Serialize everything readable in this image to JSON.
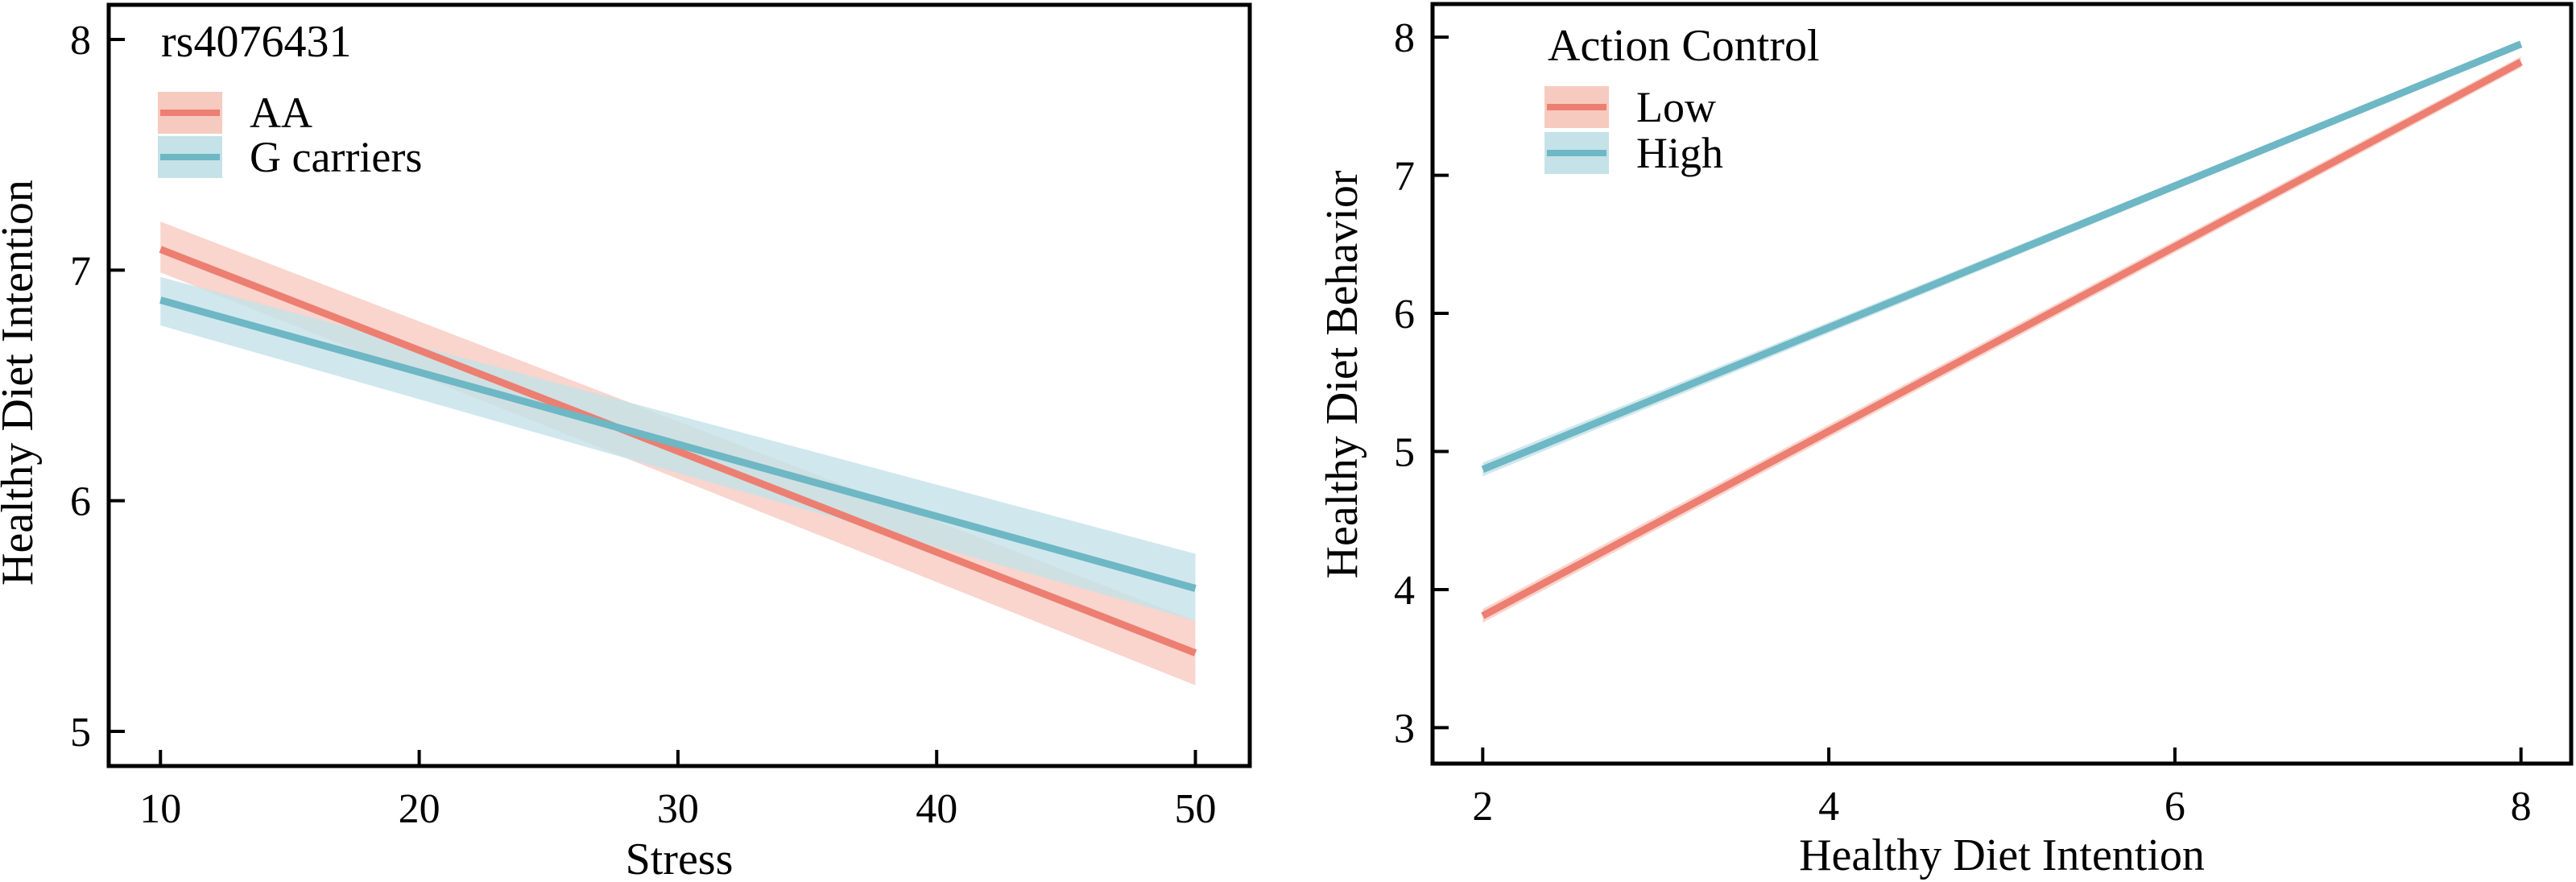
{
  "colors": {
    "series1_line": "#EC7F71",
    "series1_band": "#F7CAC0",
    "series2_line": "#6EB7C5",
    "series2_band": "#C4E2E8",
    "axis": "#000000"
  },
  "chart_data": [
    {
      "type": "line",
      "panel": "left",
      "title": "",
      "xlabel": "Stress",
      "ylabel": "Healthy Diet Intention",
      "xlim": [
        8.0,
        52.1
      ],
      "ylim": [
        4.85,
        8.15
      ],
      "xticks": [
        10,
        20,
        30,
        40,
        50
      ],
      "xtick_labels": [
        "10",
        "20",
        "30",
        "40",
        "50"
      ],
      "yticks": [
        5,
        6,
        7,
        8
      ],
      "ytick_labels": [
        "5",
        "6",
        "7",
        "8"
      ],
      "grid": false,
      "legend": {
        "title": "rs4076431",
        "placement": "top-left",
        "entries": [
          "AA",
          "G carriers"
        ]
      },
      "series": [
        {
          "name": "AA",
          "x": [
            10,
            50
          ],
          "y": [
            7.09,
            5.34
          ],
          "ci_lower": [
            6.99,
            5.2
          ],
          "ci_upper": [
            7.21,
            5.48
          ]
        },
        {
          "name": "G carriers",
          "x": [
            10,
            50
          ],
          "y": [
            6.87,
            5.62
          ],
          "ci_lower": [
            6.76,
            5.48
          ],
          "ci_upper": [
            6.97,
            5.77
          ]
        }
      ]
    },
    {
      "type": "line",
      "panel": "right",
      "title": "",
      "xlabel": "Healthy Diet Intention",
      "ylabel": "Healthy Diet Behavior",
      "xlim": [
        1.71,
        8.29
      ],
      "ylim": [
        2.74,
        8.24
      ],
      "xticks": [
        2,
        4,
        6,
        8
      ],
      "xtick_labels": [
        "2",
        "4",
        "6",
        "8"
      ],
      "yticks": [
        3,
        4,
        5,
        6,
        7,
        8
      ],
      "ytick_labels": [
        "3",
        "4",
        "5",
        "6",
        "7",
        "8"
      ],
      "grid": false,
      "legend": {
        "title": "Action Control",
        "placement": "top-left",
        "entries": [
          "Low",
          "High"
        ]
      },
      "series": [
        {
          "name": "Low",
          "x": [
            2,
            8
          ],
          "y": [
            3.81,
            7.82
          ],
          "ci_lower": [
            3.76,
            7.78
          ],
          "ci_upper": [
            3.86,
            7.86
          ]
        },
        {
          "name": "High",
          "x": [
            2,
            8
          ],
          "y": [
            4.87,
            7.95
          ],
          "ci_lower": [
            4.82,
            7.93
          ],
          "ci_upper": [
            4.92,
            7.97
          ]
        }
      ]
    }
  ]
}
